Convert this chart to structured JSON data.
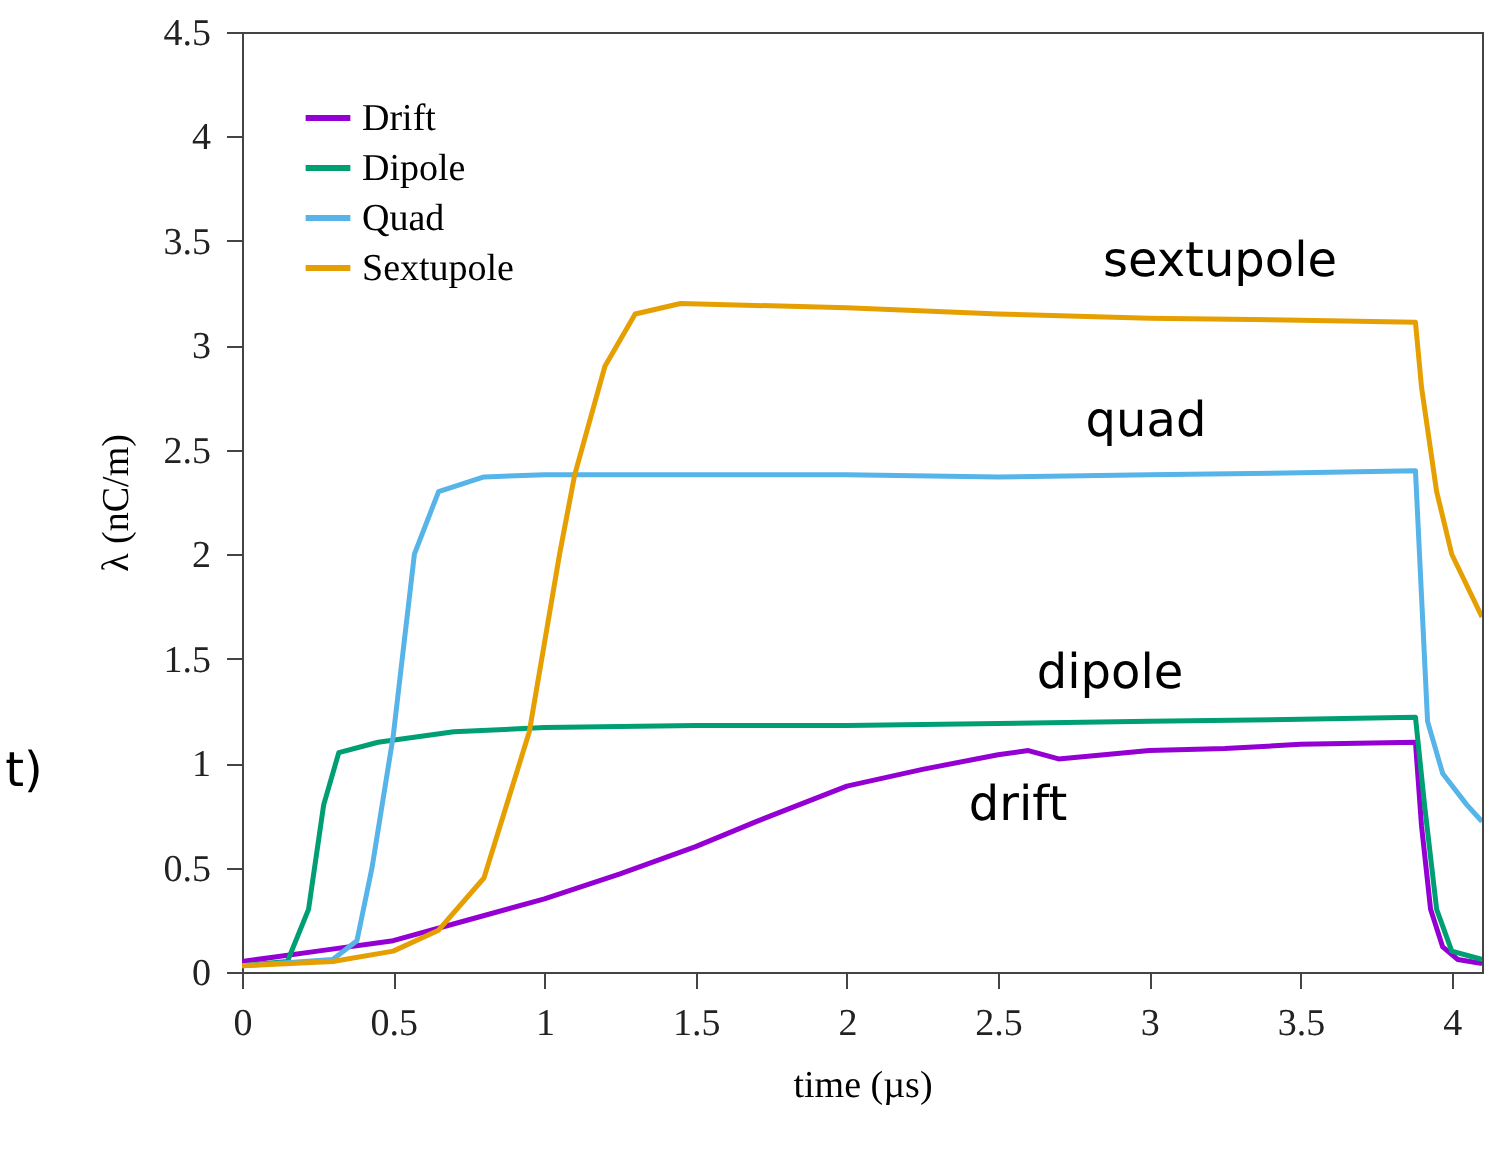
{
  "chart_data": {
    "type": "line",
    "xlabel": "time (µs)",
    "ylabel": "λ (nC/m)",
    "xlim": [
      0,
      4.1
    ],
    "ylim": [
      0,
      4.5
    ],
    "xticks": [
      0,
      0.5,
      1,
      1.5,
      2,
      2.5,
      3,
      3.5,
      4
    ],
    "yticks": [
      0,
      0.5,
      1,
      1.5,
      2,
      2.5,
      3,
      3.5,
      4,
      4.5
    ],
    "grid": false,
    "legend": "top left",
    "line_style": "solid",
    "marker": "none",
    "series": [
      {
        "name": "Drift",
        "color": "#9400d3",
        "x": [
          0,
          0.25,
          0.5,
          0.75,
          1,
          1.25,
          1.5,
          1.7,
          2,
          2.25,
          2.5,
          2.6,
          2.7,
          3,
          3.25,
          3.5,
          3.88,
          3.9,
          3.93,
          3.97,
          4.02,
          4.1
        ],
        "values": [
          0.05,
          0.1,
          0.15,
          0.25,
          0.35,
          0.47,
          0.6,
          0.72,
          0.89,
          0.97,
          1.04,
          1.06,
          1.02,
          1.06,
          1.07,
          1.09,
          1.1,
          0.7,
          0.3,
          0.12,
          0.06,
          0.04
        ]
      },
      {
        "name": "Dipole",
        "color": "#009e73",
        "x": [
          0,
          0.15,
          0.22,
          0.27,
          0.32,
          0.45,
          0.7,
          1,
          1.5,
          2,
          2.5,
          3,
          3.5,
          3.88,
          3.91,
          3.95,
          4,
          4.1
        ],
        "values": [
          0.03,
          0.05,
          0.3,
          0.8,
          1.05,
          1.1,
          1.15,
          1.17,
          1.18,
          1.18,
          1.19,
          1.2,
          1.21,
          1.22,
          0.8,
          0.3,
          0.1,
          0.06
        ]
      },
      {
        "name": "Quad",
        "color": "#56b4e9",
        "x": [
          0,
          0.3,
          0.38,
          0.43,
          0.5,
          0.57,
          0.65,
          0.8,
          1,
          1.5,
          2,
          2.5,
          3,
          3.5,
          3.88,
          3.9,
          3.92,
          3.97,
          4.05,
          4.1
        ],
        "values": [
          0.03,
          0.06,
          0.15,
          0.5,
          1.13,
          2.0,
          2.3,
          2.37,
          2.38,
          2.38,
          2.38,
          2.37,
          2.38,
          2.39,
          2.4,
          1.8,
          1.2,
          0.95,
          0.8,
          0.72
        ]
      },
      {
        "name": "Sextupole",
        "color": "#e69f00",
        "x": [
          0,
          0.3,
          0.5,
          0.65,
          0.8,
          0.95,
          1.05,
          1.1,
          1.2,
          1.3,
          1.45,
          2,
          2.5,
          3,
          3.5,
          3.88,
          3.9,
          3.95,
          4,
          4.1
        ],
        "values": [
          0.03,
          0.05,
          0.1,
          0.2,
          0.45,
          1.15,
          2.0,
          2.38,
          2.9,
          3.15,
          3.2,
          3.18,
          3.15,
          3.13,
          3.12,
          3.11,
          2.8,
          2.3,
          2.0,
          1.7
        ]
      }
    ],
    "annotations": [
      "sextupole",
      "quad",
      "dipole",
      "drift",
      "t)"
    ]
  }
}
